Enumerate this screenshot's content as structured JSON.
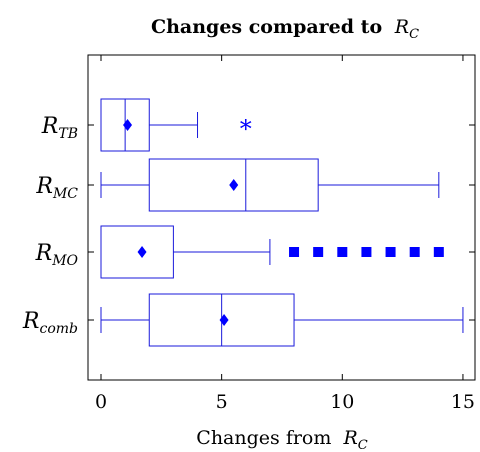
{
  "chart_data": {
    "type": "box",
    "title_text": "Changes compared to",
    "title_symbol": {
      "base": "R",
      "sub": "C"
    },
    "xlabel_text": "Changes from",
    "xlabel_symbol": {
      "base": "R",
      "sub": "C"
    },
    "xlim": [
      -0.6,
      15.5
    ],
    "xticks": [
      0,
      5,
      10,
      15
    ],
    "grid": false,
    "colors": {
      "box": "#1a1adb",
      "mean": "#0000ff",
      "outlier": "#0000ff",
      "axis": "#000000"
    },
    "categories": [
      {
        "base": "R",
        "sub": "TB"
      },
      {
        "base": "R",
        "sub": "MC"
      },
      {
        "base": "R",
        "sub": "MO"
      },
      {
        "base": "R",
        "sub": "comb"
      }
    ],
    "boxes": [
      {
        "min": 0,
        "q1": 0,
        "median": 1,
        "q3": 2,
        "max": 4,
        "mean": 1.1,
        "outliers": [
          6
        ],
        "outlier_marker": "asterisk"
      },
      {
        "min": 0,
        "q1": 2,
        "median": 6,
        "q3": 9,
        "max": 14,
        "mean": 5.5,
        "outliers": [],
        "outlier_marker": "square"
      },
      {
        "min": 0,
        "q1": 0,
        "median": 0,
        "q3": 3,
        "max": 7,
        "mean": 1.7,
        "outliers": [
          8,
          9,
          10,
          11,
          12,
          13,
          14
        ],
        "outlier_marker": "square"
      },
      {
        "min": 0,
        "q1": 2,
        "median": 5,
        "q3": 8,
        "max": 15,
        "mean": 5.1,
        "outliers": [],
        "outlier_marker": "square"
      }
    ]
  }
}
